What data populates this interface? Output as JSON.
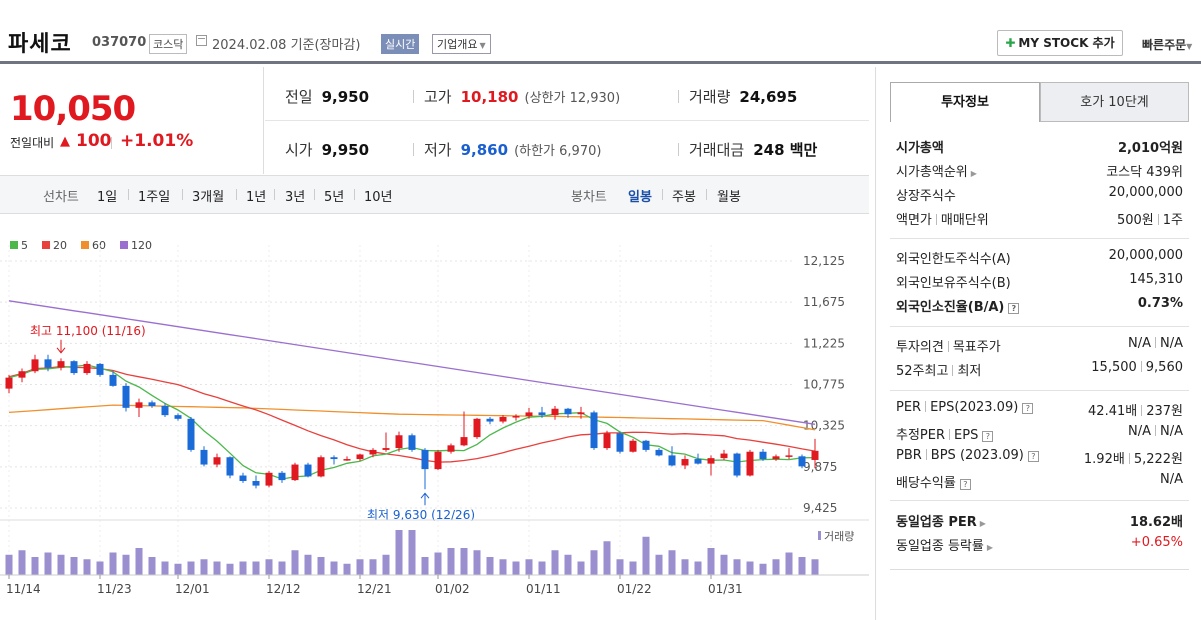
{
  "header": {
    "name": "파세코",
    "code": "037070",
    "market": "코스닥",
    "date": "2024.02.08 기준(장마감)",
    "realtime": "실시간",
    "company": "기업개요",
    "mystock": "MY STOCK 추가",
    "quick_order": "빠른주문"
  },
  "price": {
    "current": "10,050",
    "diff_label": "전일대비",
    "diff": "100",
    "pct": "+1.01%"
  },
  "stats": {
    "prev_label": "전일",
    "prev": "9,950",
    "high_label": "고가",
    "high": "10,180",
    "upper_limit": "(상한가 12,930)",
    "volume_label": "거래량",
    "volume": "24,695",
    "open_label": "시가",
    "open": "9,950",
    "low_label": "저가",
    "low": "9,860",
    "lower_limit": "(하한가 6,970)",
    "amount_label": "거래대금",
    "amount": "248 백만"
  },
  "period": {
    "line_label": "선차트",
    "line_items": [
      "1일",
      "1주일",
      "3개월",
      "1년",
      "3년",
      "5년",
      "10년"
    ],
    "candle_label": "봉차트",
    "candle_items": [
      "일봉",
      "주봉",
      "월봉"
    ],
    "active_candle": "일봉"
  },
  "chart_data": {
    "type": "candlestick",
    "legend": [
      {
        "name": "5",
        "color": "#4cb84c"
      },
      {
        "name": "20",
        "color": "#e8403c"
      },
      {
        "name": "60",
        "color": "#f0902c"
      },
      {
        "name": "120",
        "color": "#9b6fd0"
      }
    ],
    "y_ticks": [
      "12,125",
      "11,675",
      "11,225",
      "10,775",
      "10,325",
      "9,875",
      "9,425"
    ],
    "y_values": [
      12125,
      11675,
      11225,
      10775,
      10325,
      9875,
      9425
    ],
    "x_ticks": [
      "11/14",
      "11/23",
      "12/01",
      "12/12",
      "12/21",
      "01/02",
      "01/11",
      "01/22",
      "01/31"
    ],
    "x_tick_index": [
      0,
      7,
      13,
      20,
      27,
      33,
      40,
      47,
      54
    ],
    "max_label": "최고 11,100 (11/16)",
    "min_label": "최저 9,630 (12/26)",
    "volume_label": "거래량",
    "candles": [
      [
        10730,
        10880,
        10680,
        10850
      ],
      [
        10850,
        10950,
        10800,
        10920
      ],
      [
        10920,
        11100,
        10900,
        11050
      ],
      [
        11050,
        11100,
        10920,
        10960
      ],
      [
        10960,
        11060,
        10930,
        11030
      ],
      [
        11030,
        11040,
        10880,
        10900
      ],
      [
        10900,
        11030,
        10880,
        11000
      ],
      [
        11000,
        11010,
        10860,
        10880
      ],
      [
        10880,
        10920,
        10750,
        10760
      ],
      [
        10760,
        10790,
        10480,
        10520
      ],
      [
        10520,
        10620,
        10420,
        10580
      ],
      [
        10580,
        10600,
        10520,
        10540
      ],
      [
        10540,
        10570,
        10420,
        10440
      ],
      [
        10440,
        10460,
        10380,
        10400
      ],
      [
        10400,
        10420,
        10040,
        10060
      ],
      [
        10060,
        10100,
        9880,
        9900
      ],
      [
        9900,
        10020,
        9870,
        9980
      ],
      [
        9980,
        9990,
        9750,
        9780
      ],
      [
        9780,
        9810,
        9700,
        9720
      ],
      [
        9720,
        9780,
        9640,
        9670
      ],
      [
        9670,
        9830,
        9650,
        9810
      ],
      [
        9810,
        9830,
        9700,
        9730
      ],
      [
        9730,
        9920,
        9720,
        9900
      ],
      [
        9900,
        9920,
        9760,
        9770
      ],
      [
        9770,
        10000,
        9760,
        9980
      ],
      [
        9980,
        10000,
        9900,
        9960
      ],
      [
        9960,
        9990,
        9940,
        9960
      ],
      [
        9960,
        10020,
        9940,
        10010
      ],
      [
        10010,
        10080,
        9980,
        10060
      ],
      [
        10060,
        10250,
        10040,
        10080
      ],
      [
        10080,
        10260,
        10040,
        10220
      ],
      [
        10220,
        10240,
        10040,
        10060
      ],
      [
        10060,
        10080,
        9630,
        9850
      ],
      [
        9850,
        10060,
        9840,
        10040
      ],
      [
        10040,
        10130,
        10020,
        10110
      ],
      [
        10110,
        10480,
        10100,
        10200
      ],
      [
        10200,
        10410,
        10180,
        10400
      ],
      [
        10400,
        10420,
        10340,
        10370
      ],
      [
        10370,
        10440,
        10350,
        10420
      ],
      [
        10420,
        10450,
        10380,
        10430
      ],
      [
        10430,
        10520,
        10400,
        10470
      ],
      [
        10470,
        10530,
        10410,
        10440
      ],
      [
        10440,
        10540,
        10390,
        10510
      ],
      [
        10510,
        10520,
        10410,
        10450
      ],
      [
        10450,
        10530,
        10400,
        10470
      ],
      [
        10470,
        10490,
        10060,
        10080
      ],
      [
        10080,
        10270,
        10060,
        10240
      ],
      [
        10240,
        10260,
        10020,
        10040
      ],
      [
        10040,
        10180,
        10030,
        10160
      ],
      [
        10160,
        10170,
        10040,
        10060
      ],
      [
        10060,
        10080,
        9990,
        10000
      ],
      [
        10000,
        10100,
        9880,
        9890
      ],
      [
        9890,
        10000,
        9850,
        9960
      ],
      [
        9960,
        10020,
        9900,
        9910
      ],
      [
        9910,
        10000,
        9780,
        9970
      ],
      [
        9970,
        10060,
        9950,
        10020
      ],
      [
        10020,
        10030,
        9760,
        9780
      ],
      [
        9780,
        10060,
        9770,
        10040
      ],
      [
        10040,
        10070,
        9940,
        9960
      ],
      [
        9960,
        10010,
        9940,
        9990
      ],
      [
        9990,
        10080,
        9960,
        10000
      ],
      [
        9990,
        10010,
        9860,
        9880
      ],
      [
        9950,
        10180,
        9860,
        10050
      ]
    ],
    "volume_rel": [
      0.45,
      0.55,
      0.4,
      0.5,
      0.45,
      0.4,
      0.35,
      0.3,
      0.5,
      0.45,
      0.6,
      0.4,
      0.3,
      0.25,
      0.3,
      0.35,
      0.3,
      0.25,
      0.3,
      0.3,
      0.35,
      0.3,
      0.55,
      0.45,
      0.4,
      0.3,
      0.25,
      0.35,
      0.35,
      0.45,
      1.0,
      1.0,
      0.4,
      0.5,
      0.6,
      0.6,
      0.55,
      0.4,
      0.35,
      0.3,
      0.35,
      0.3,
      0.55,
      0.45,
      0.3,
      0.55,
      0.75,
      0.35,
      0.3,
      0.85,
      0.45,
      0.55,
      0.35,
      0.3,
      0.6,
      0.45,
      0.35,
      0.3,
      0.25,
      0.35,
      0.5,
      0.4,
      0.35
    ],
    "ma_120": [
      [
        0,
        11690
      ],
      [
        62,
        10340
      ]
    ],
    "ma_60": [
      [
        0,
        10470
      ],
      [
        8,
        10550
      ],
      [
        18,
        10520
      ],
      [
        30,
        10450
      ],
      [
        45,
        10420
      ],
      [
        58,
        10380
      ],
      [
        62,
        10280
      ]
    ]
  },
  "right_panel": {
    "tab_info": "투자정보",
    "tab_hoga": "호가 10단계",
    "rows1": [
      {
        "k": "시가총액",
        "v": "2,010억원",
        "bold": true
      },
      {
        "k": "시가총액순위",
        "v": "코스닥 439위",
        "tri": true
      },
      {
        "k": "상장주식수",
        "v": "20,000,000"
      },
      {
        "k": "액면가",
        "k2": "매매단위",
        "v": "500원",
        "v2": "1주"
      }
    ],
    "rows2": [
      {
        "k": "외국인한도주식수(A)",
        "v": "20,000,000"
      },
      {
        "k": "외국인보유주식수(B)",
        "v": "145,310"
      },
      {
        "k": "외국인소진율(B/A)",
        "v": "0.73%",
        "bold": true,
        "q": true
      }
    ],
    "rows3": [
      {
        "k": "투자의견",
        "k2": "목표주가",
        "v": "N/A",
        "v2": "N/A"
      },
      {
        "k": "52주최고",
        "k2": "최저",
        "v": "15,500",
        "v2": "9,560"
      }
    ],
    "rows4": [
      {
        "k": "PER",
        "k2": "EPS(2023.09)",
        "v": "42.41배",
        "v2": "237원",
        "q": true
      },
      {
        "k": "추정PER",
        "k2": "EPS",
        "v": "N/A",
        "v2": "N/A",
        "q": true
      },
      {
        "k": "PBR",
        "k2": "BPS (2023.09)",
        "v": "1.92배",
        "v2": "5,222원",
        "q": true
      },
      {
        "k": "배당수익률",
        "v": "N/A",
        "q": true
      }
    ],
    "rows5": [
      {
        "k": "동일업종 PER",
        "v": "18.62배",
        "bold": true,
        "tri": true
      },
      {
        "k": "동일업종 등락률",
        "v": "+0.65%",
        "red": true,
        "tri": true
      }
    ]
  }
}
